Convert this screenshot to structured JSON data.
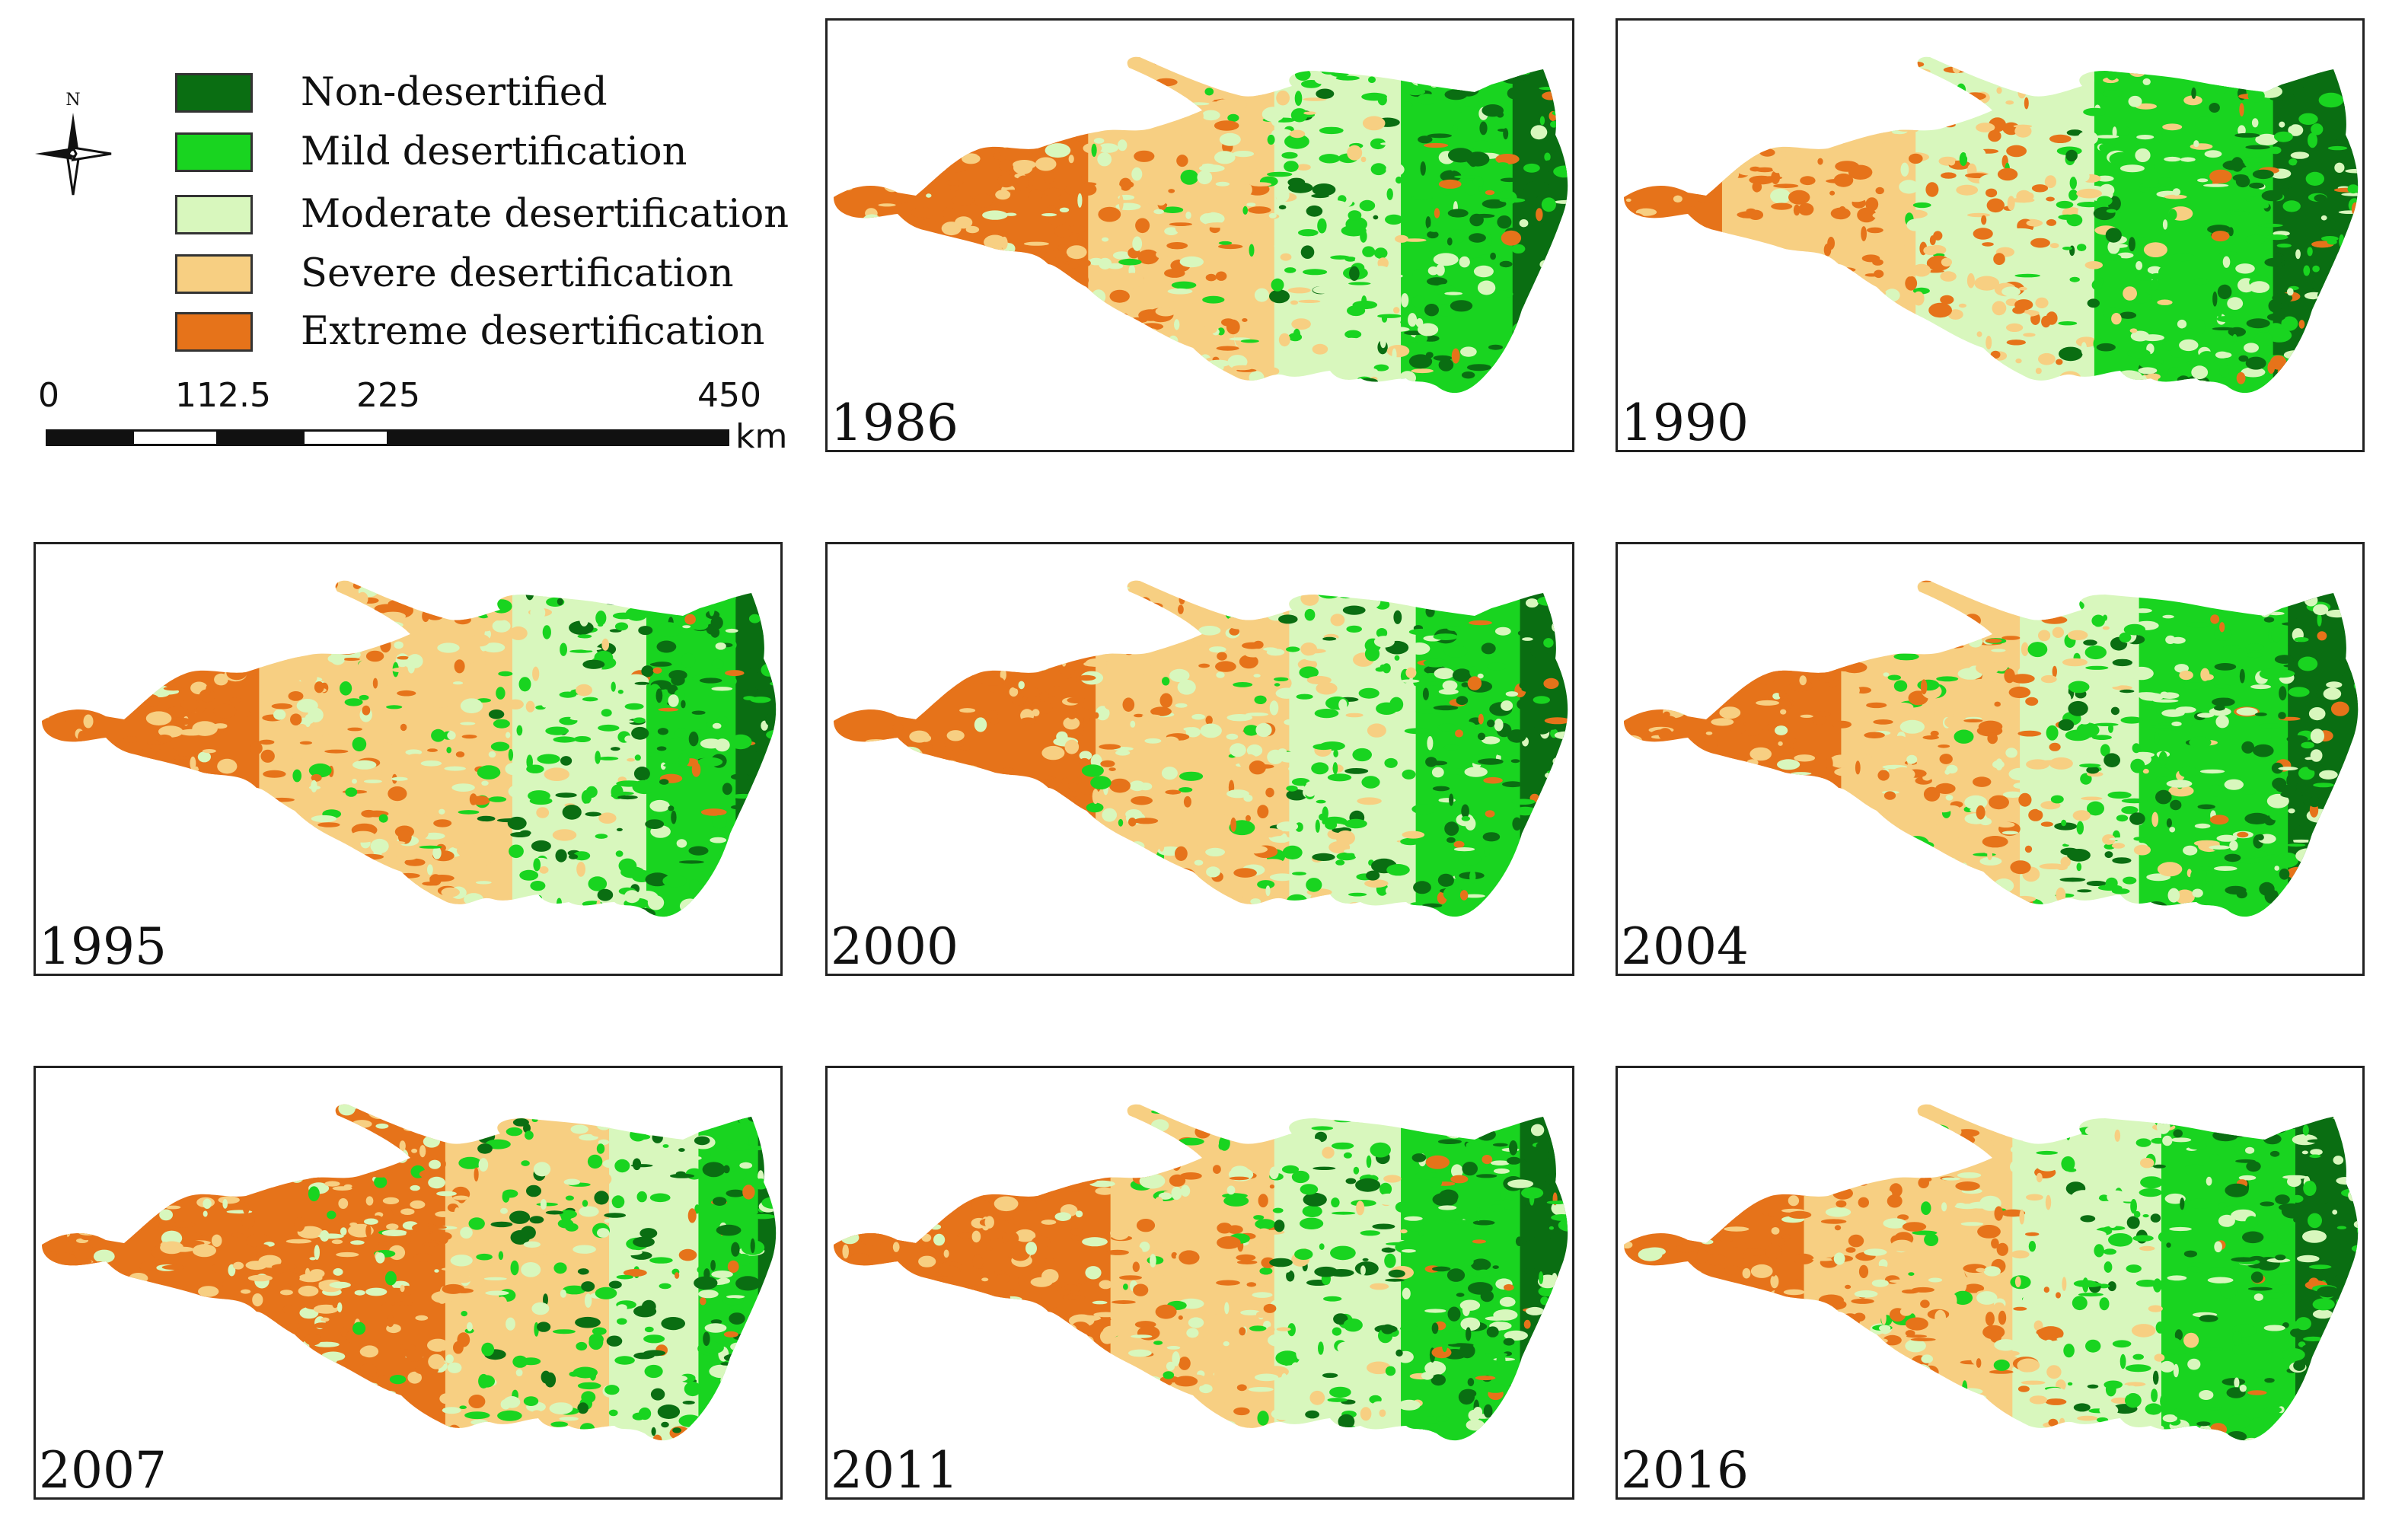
{
  "legend": {
    "items": [
      {
        "label": "Non-desertified",
        "color": "#0a6e12"
      },
      {
        "label": "Mild desertification",
        "color": "#19d420"
      },
      {
        "label": "Moderate desertification",
        "color": "#d8f7bd"
      },
      {
        "label": "Severe desertification",
        "color": "#f7cf82"
      },
      {
        "label": "Extreme desertification",
        "color": "#e6731a"
      }
    ]
  },
  "north_arrow": {
    "label": "N",
    "icon": "north-arrow-icon"
  },
  "scale_bar": {
    "ticks": [
      "0",
      "112.5",
      "225",
      "450"
    ],
    "unit": "km"
  },
  "panels": [
    {
      "year": "1986",
      "extreme": 0.35,
      "severe": 0.25,
      "moderate": 0.17,
      "mild": 0.15,
      "non": 0.08
    },
    {
      "year": "1990",
      "extreme": 0.14,
      "severe": 0.26,
      "moderate": 0.24,
      "mild": 0.24,
      "non": 0.12
    },
    {
      "year": "1995",
      "extreme": 0.3,
      "severe": 0.34,
      "moderate": 0.18,
      "mild": 0.12,
      "non": 0.06
    },
    {
      "year": "2000",
      "extreme": 0.36,
      "severe": 0.26,
      "moderate": 0.17,
      "mild": 0.14,
      "non": 0.07
    },
    {
      "year": "2004",
      "extreme": 0.3,
      "severe": 0.24,
      "moderate": 0.16,
      "mild": 0.2,
      "non": 0.1
    },
    {
      "year": "2007",
      "extreme": 0.55,
      "severe": 0.22,
      "moderate": 0.12,
      "mild": 0.08,
      "non": 0.03
    },
    {
      "year": "2011",
      "extreme": 0.38,
      "severe": 0.22,
      "moderate": 0.17,
      "mild": 0.16,
      "non": 0.07
    },
    {
      "year": "2016",
      "extreme": 0.25,
      "severe": 0.28,
      "moderate": 0.2,
      "mild": 0.18,
      "non": 0.09
    }
  ]
}
